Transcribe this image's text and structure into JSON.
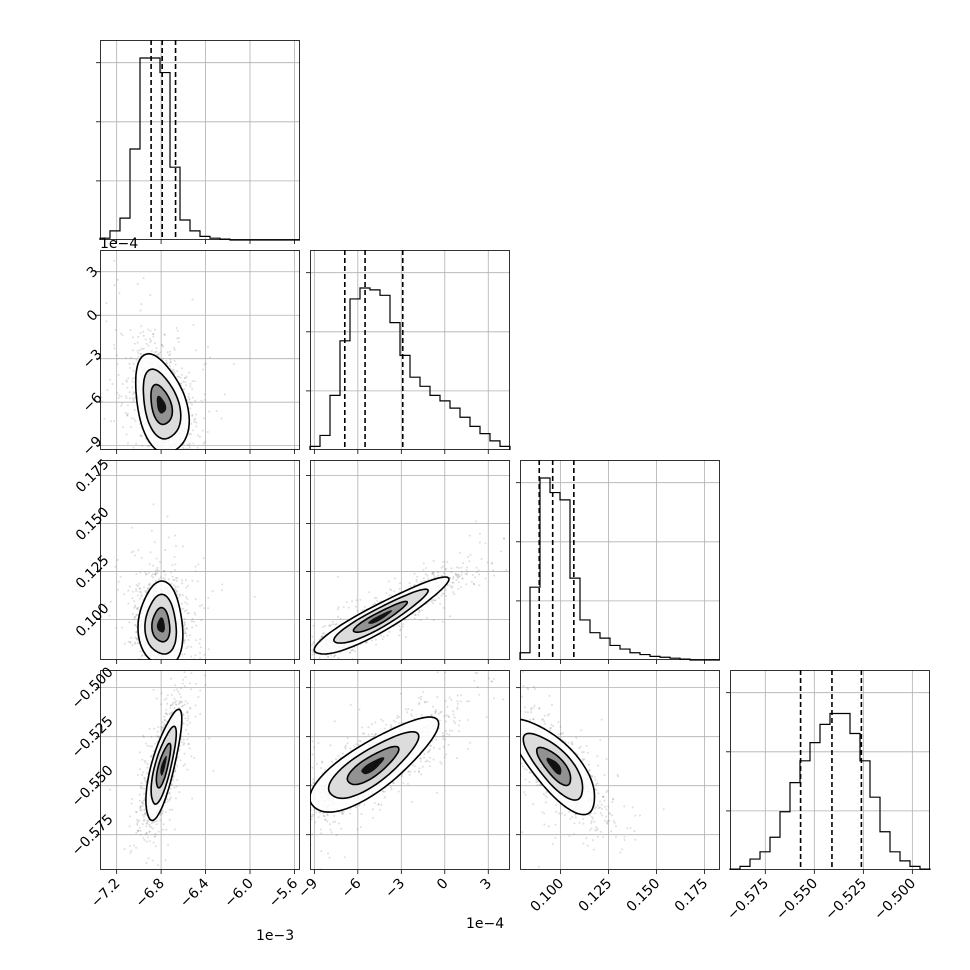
{
  "chart_data": {
    "type": "corner",
    "params": [
      {
        "range": [
          -7.35,
          -5.55
        ],
        "ticks": [
          -7.2,
          -6.8,
          -6.4,
          -6.0,
          -5.6
        ],
        "tick_labels": [
          "−7.2",
          "−6.8",
          "−6.4",
          "−6.0",
          "−5.6"
        ],
        "offset": "1e−3",
        "median": -6.79,
        "quantiles": [
          -6.89,
          -6.67
        ]
      },
      {
        "range": [
          -9.3,
          4.5
        ],
        "ticks": [
          -9,
          -6,
          -3,
          0,
          3
        ],
        "tick_labels": [
          "−9",
          "−6",
          "−3",
          "0",
          "3"
        ],
        "offset": "1e−4",
        "median": -5.5,
        "quantiles": [
          -6.9,
          -2.9
        ]
      },
      {
        "range": [
          0.079,
          0.183
        ],
        "ticks": [
          0.1,
          0.125,
          0.15,
          0.175
        ],
        "tick_labels": [
          "0.100",
          "0.125",
          "0.150",
          "0.175"
        ],
        "offset": "",
        "median": 0.096,
        "quantiles": [
          0.089,
          0.107
        ]
      },
      {
        "range": [
          -0.593,
          -0.491
        ],
        "ticks": [
          -0.575,
          -0.55,
          -0.525,
          -0.5
        ],
        "tick_labels": [
          "−0.575",
          "−0.550",
          "−0.525",
          "−0.500"
        ],
        "offset": "",
        "median": -0.541,
        "quantiles": [
          -0.557,
          -0.526
        ]
      }
    ],
    "histograms": [
      {
        "heights": [
          0.01,
          0.05,
          0.12,
          0.5,
          1.0,
          1.0,
          0.92,
          0.4,
          0.11,
          0.05,
          0.02,
          0.01,
          0.005,
          0,
          0,
          0,
          0,
          0,
          0,
          0
        ]
      },
      {
        "heights": [
          0.02,
          0.08,
          0.3,
          0.6,
          0.83,
          0.89,
          0.88,
          0.85,
          0.7,
          0.52,
          0.4,
          0.35,
          0.3,
          0.27,
          0.23,
          0.18,
          0.13,
          0.09,
          0.05,
          0.02
        ]
      },
      {
        "heights": [
          0.04,
          0.4,
          1.0,
          0.92,
          0.88,
          0.45,
          0.22,
          0.15,
          0.12,
          0.08,
          0.06,
          0.04,
          0.03,
          0.02,
          0.015,
          0.01,
          0.005,
          0,
          0,
          0
        ]
      },
      {
        "heights": [
          0.005,
          0.02,
          0.06,
          0.1,
          0.18,
          0.32,
          0.48,
          0.6,
          0.7,
          0.8,
          0.86,
          0.86,
          0.75,
          0.6,
          0.4,
          0.21,
          0.1,
          0.05,
          0.02,
          0.005
        ]
      }
    ],
    "pairs": [
      {
        "x": 0,
        "y": 1,
        "center": [
          -6.8,
          -6.2
        ],
        "sd": [
          0.12,
          1.7
        ],
        "rho": -0.35,
        "extra_points": 600
      },
      {
        "x": 0,
        "y": 2,
        "center": [
          -6.8,
          0.097
        ],
        "sd": [
          0.1,
          0.011
        ],
        "rho": -0.05,
        "extra_points": 300
      },
      {
        "x": 1,
        "y": 2,
        "center": [
          -4.5,
          0.101
        ],
        "sd": [
          2.3,
          0.01
        ],
        "rho": 0.92,
        "extra_points": 200
      },
      {
        "x": 0,
        "y": 3,
        "center": [
          -6.78,
          -0.54
        ],
        "sd": [
          0.08,
          0.014
        ],
        "rho": 0.75,
        "extra_points": 200
      },
      {
        "x": 1,
        "y": 3,
        "center": [
          -5.0,
          -0.54
        ],
        "sd": [
          2.2,
          0.012
        ],
        "rho": 0.8,
        "extra_points": 200
      },
      {
        "x": 2,
        "y": 3,
        "center": [
          0.097,
          -0.54
        ],
        "sd": [
          0.011,
          0.012
        ],
        "rho": -0.75,
        "extra_points": 200
      }
    ],
    "grid": true
  }
}
